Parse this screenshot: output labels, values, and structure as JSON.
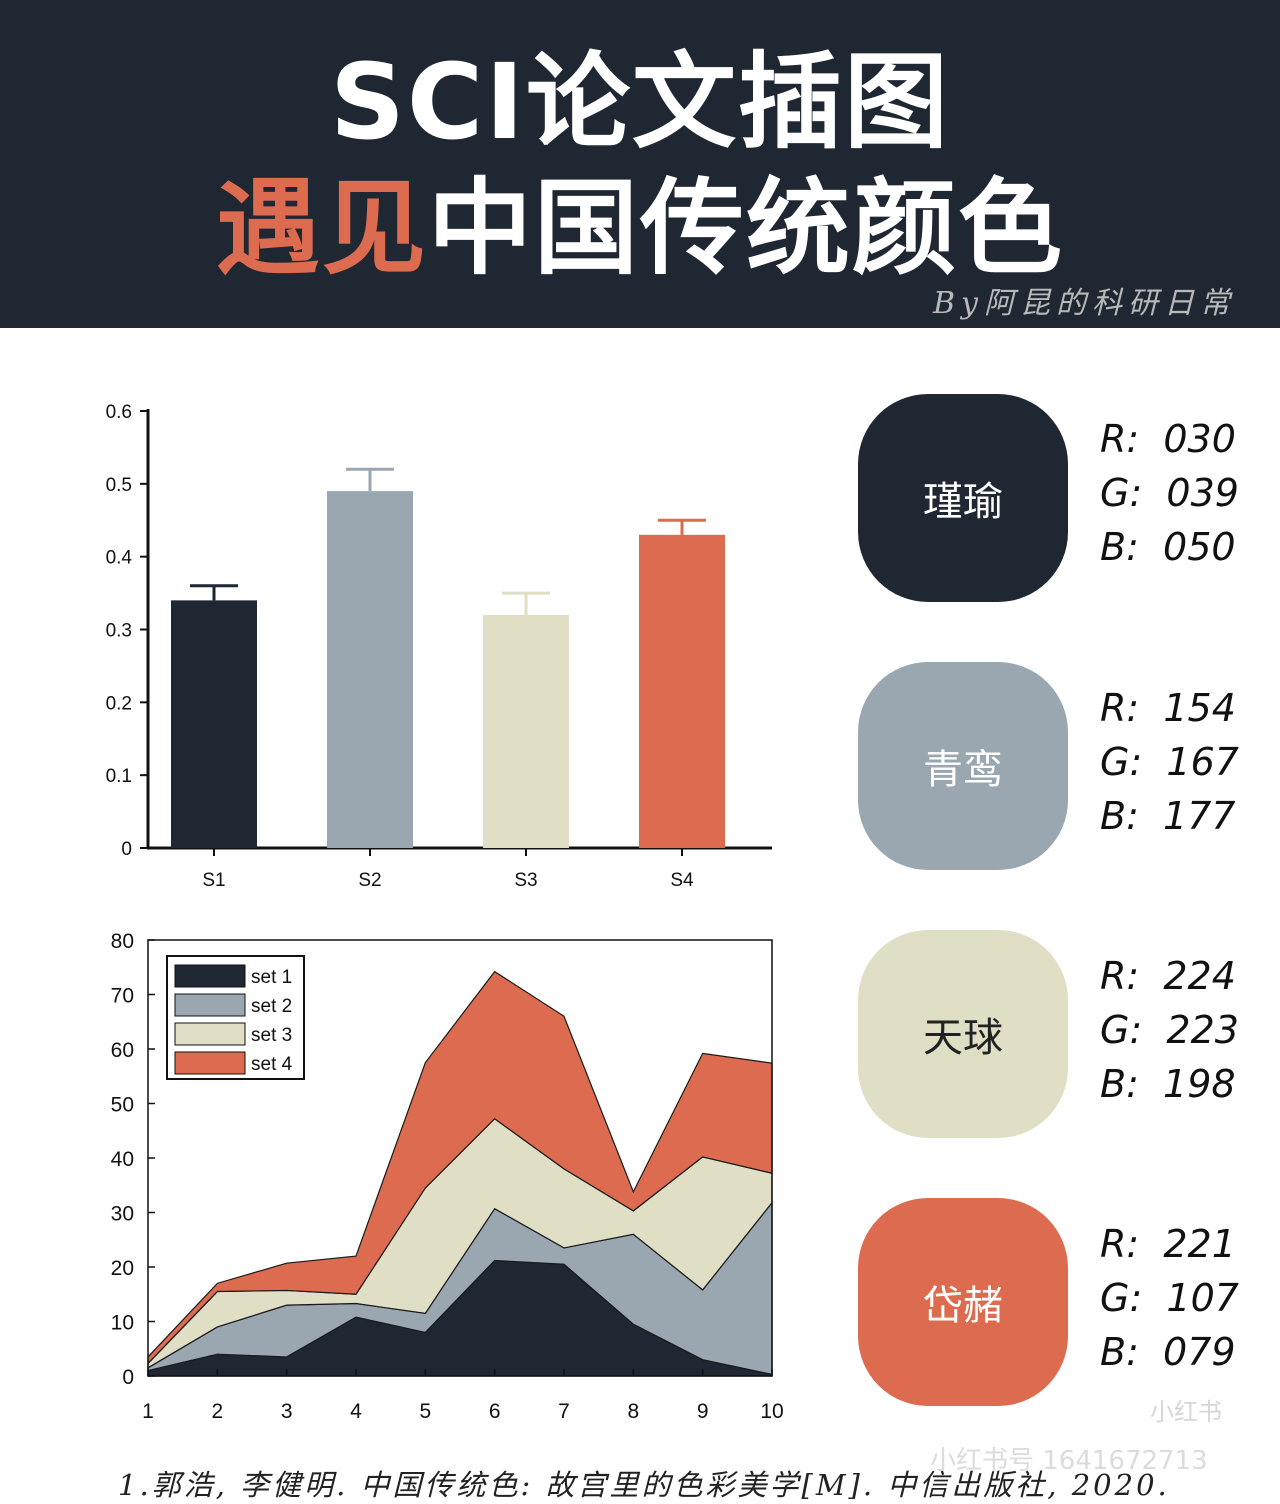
{
  "header": {
    "title_line1": "SCI论文插图",
    "title_line2_accent": "遇见",
    "title_line2_rest": "中国传统颜色",
    "byline": "By阿昆的科研日常"
  },
  "colors": {
    "banner_bg": "#1e2732",
    "accent": "#dd6b4f",
    "c1": "#1e2732",
    "c2": "#9aa7b1",
    "c3": "#e0dfc6",
    "c4": "#dd6b4f"
  },
  "swatches": [
    {
      "name": "瑾瑜",
      "hex": "#1e2732",
      "text_color": "#ffffff",
      "r": "R:  030",
      "g": "G:  039",
      "b": "B:  050"
    },
    {
      "name": "青鸾",
      "hex": "#9aa7b1",
      "text_color": "#ffffff",
      "r": "R:  154",
      "g": "G:  167",
      "b": "B:  177"
    },
    {
      "name": "天球",
      "hex": "#e0dfc6",
      "text_color": "#222222",
      "r": "R:  224",
      "g": "G:  223",
      "b": "B:  198"
    },
    {
      "name": "岱赭",
      "hex": "#dd6b4f",
      "text_color": "#ffffff",
      "r": "R:  221",
      "g": "G:  107",
      "b": "B:  079"
    }
  ],
  "chart_data": [
    {
      "type": "bar",
      "categories": [
        "S1",
        "S2",
        "S3",
        "S4"
      ],
      "values": [
        0.34,
        0.49,
        0.32,
        0.43
      ],
      "errors": [
        0.02,
        0.03,
        0.03,
        0.02
      ],
      "colors": [
        "#1e2732",
        "#9aa7b1",
        "#e0dfc6",
        "#dd6b4f"
      ],
      "ylim": [
        0,
        0.6
      ],
      "yticks": [
        "0",
        "0.1",
        "0.2",
        "0.3",
        "0.4",
        "0.5",
        "0.6"
      ],
      "title": "",
      "xlabel": "",
      "ylabel": "",
      "grid": false
    },
    {
      "type": "area",
      "stacked": true,
      "x": [
        1,
        2,
        3,
        4,
        5,
        6,
        7,
        8,
        9,
        10
      ],
      "series": [
        {
          "name": "set 1",
          "color": "#1e2732",
          "values": [
            1.0,
            4.0,
            3.5,
            10.8,
            8.0,
            21.2,
            20.5,
            9.5,
            3.0,
            0.3
          ]
        },
        {
          "name": "set 2",
          "color": "#9aa7b1",
          "values": [
            0.5,
            5.0,
            9.5,
            2.5,
            3.5,
            9.5,
            3.0,
            16.5,
            12.8,
            31.5
          ]
        },
        {
          "name": "set 3",
          "color": "#e0dfc6",
          "values": [
            0.8,
            6.5,
            2.7,
            1.7,
            23.0,
            16.5,
            14.5,
            4.3,
            24.4,
            5.4
          ]
        },
        {
          "name": "set 4",
          "color": "#dd6b4f",
          "values": [
            1.2,
            1.5,
            5.0,
            7.0,
            23.0,
            27.0,
            28.0,
            3.5,
            19.0,
            20.2
          ]
        }
      ],
      "xlim": [
        1,
        10
      ],
      "ylim": [
        0,
        80
      ],
      "yticks": [
        "0",
        "10",
        "20",
        "30",
        "40",
        "50",
        "60",
        "70",
        "80"
      ],
      "xticks": [
        "1",
        "2",
        "3",
        "4",
        "5",
        "6",
        "7",
        "8",
        "9",
        "10"
      ],
      "legend_position": "top-left",
      "title": "",
      "xlabel": "",
      "ylabel": "",
      "grid": false
    }
  ],
  "reference": "1.郭浩, 李健明. 中国传统色: 故宫里的色彩美学[M]. 中信出版社, 2020.",
  "watermark": {
    "logo": "小红书",
    "id_text": "小红书号 1641672713"
  }
}
